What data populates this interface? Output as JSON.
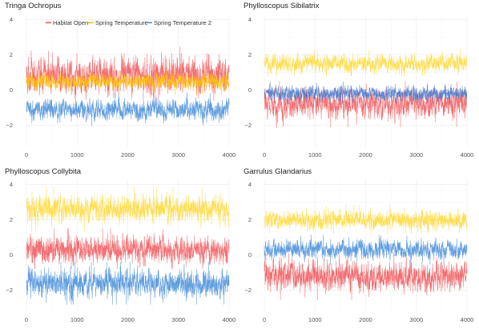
{
  "chart_data": [
    {
      "type": "line",
      "title": "Tringa Ochropus",
      "xlim": [
        0,
        4000
      ],
      "ylim": [
        -3.2,
        4.3
      ],
      "x_ticks": [
        0,
        1000,
        2000,
        3000,
        4000
      ],
      "y_ticks": [
        -2,
        0,
        2,
        4
      ],
      "grid": true,
      "n_points": 4000,
      "series": [
        {
          "name": "Habitat Open",
          "color": "#f05a5e",
          "approx_mean": 0.8,
          "approx_range": [
            -0.6,
            3.1
          ]
        },
        {
          "name": "Spring Temperature",
          "color": "#ffc107",
          "approx_mean": 0.5,
          "approx_range": [
            -0.3,
            1.4
          ]
        },
        {
          "name": "Spring Temperature 2",
          "color": "#4a90d9",
          "approx_mean": -1.1,
          "approx_range": [
            -2.2,
            -0.1
          ]
        }
      ]
    },
    {
      "type": "line",
      "title": "Phylloscopus Sibilatrix",
      "xlim": [
        0,
        4000
      ],
      "ylim": [
        -3.2,
        4.3
      ],
      "x_ticks": [
        0,
        1000,
        2000,
        3000,
        4000
      ],
      "y_ticks": [
        -2,
        0,
        2,
        4
      ],
      "grid": true,
      "n_points": 4000,
      "series": [
        {
          "name": "Habitat Open",
          "color": "#f05a5e",
          "approx_mean": -0.8,
          "approx_range": [
            -2.4,
            0.5
          ]
        },
        {
          "name": "Spring Temperature",
          "color": "#ffd93b",
          "approx_mean": 1.5,
          "approx_range": [
            0.8,
            2.6
          ]
        },
        {
          "name": "Spring Temperature 2",
          "color": "#4a78c8",
          "approx_mean": -0.2,
          "approx_range": [
            -0.9,
            0.6
          ]
        }
      ]
    },
    {
      "type": "line",
      "title": "Phylloscopus Collybita",
      "xlim": [
        0,
        4000
      ],
      "ylim": [
        -3.2,
        4.3
      ],
      "x_ticks": [
        0,
        1000,
        2000,
        3000,
        4000
      ],
      "y_ticks": [
        -2,
        0,
        2,
        4
      ],
      "grid": true,
      "n_points": 4000,
      "series": [
        {
          "name": "Habitat Open",
          "color": "#f05a5e",
          "approx_mean": 0.3,
          "approx_range": [
            -0.8,
            1.9
          ]
        },
        {
          "name": "Spring Temperature",
          "color": "#ffd93b",
          "approx_mean": 2.6,
          "approx_range": [
            1.2,
            4.0
          ]
        },
        {
          "name": "Spring Temperature 2",
          "color": "#4a90d9",
          "approx_mean": -1.6,
          "approx_range": [
            -3.0,
            -0.3
          ]
        }
      ]
    },
    {
      "type": "line",
      "title": "Garrulus Glandarius",
      "xlim": [
        0,
        4000
      ],
      "ylim": [
        -3.2,
        4.3
      ],
      "x_ticks": [
        0,
        1000,
        2000,
        3000,
        4000
      ],
      "y_ticks": [
        -2,
        0,
        2,
        4
      ],
      "grid": true,
      "n_points": 4000,
      "series": [
        {
          "name": "Habitat Open",
          "color": "#f05a5e",
          "approx_mean": -1.2,
          "approx_range": [
            -2.9,
            0.1
          ]
        },
        {
          "name": "Spring Temperature",
          "color": "#ffd93b",
          "approx_mean": 2.0,
          "approx_range": [
            1.2,
            3.1
          ]
        },
        {
          "name": "Spring Temperature 2",
          "color": "#4a90d9",
          "approx_mean": 0.3,
          "approx_range": [
            -0.7,
            1.2
          ]
        }
      ]
    }
  ],
  "legend": {
    "placement": "top-left",
    "entries": [
      {
        "label": "Habitat Open",
        "color": "#f05a5e"
      },
      {
        "label": "Spring Temperature",
        "color": "#ffc107"
      },
      {
        "label": "Spring Temperature 2",
        "color": "#4a90d9"
      }
    ]
  }
}
